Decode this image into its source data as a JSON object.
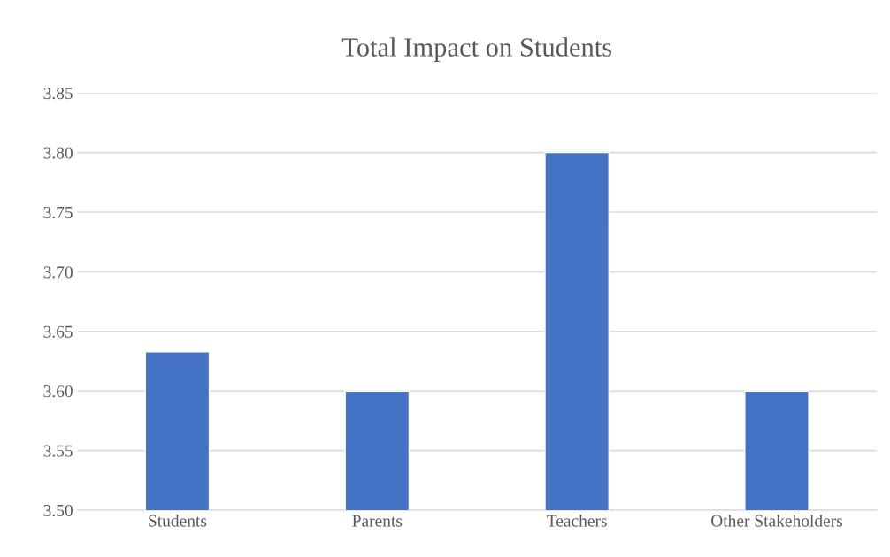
{
  "chart_data": {
    "type": "bar",
    "title": "Total Impact on Students",
    "categories": [
      "Students",
      "Parents",
      "Teachers",
      "Other Stakeholders"
    ],
    "values": [
      3.633,
      3.6,
      3.8,
      3.6
    ],
    "color": "#4472c4",
    "ylim": [
      3.5,
      3.85
    ],
    "yticks": [
      {
        "value": 3.5,
        "label": "3.50"
      },
      {
        "value": 3.55,
        "label": "3.55"
      },
      {
        "value": 3.6,
        "label": "3.60"
      },
      {
        "value": 3.65,
        "label": "3.65"
      },
      {
        "value": 3.7,
        "label": "3.70"
      },
      {
        "value": 3.75,
        "label": "3.75"
      },
      {
        "value": 3.8,
        "label": "3.80"
      },
      {
        "value": 3.85,
        "label": "3.85"
      }
    ],
    "grid": "y"
  }
}
